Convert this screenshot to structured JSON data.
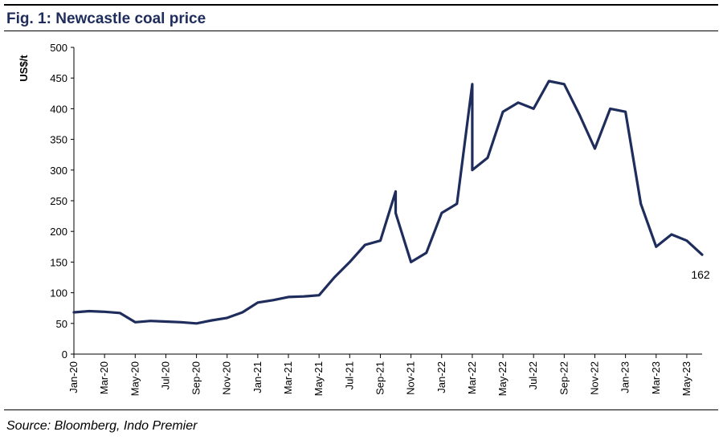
{
  "figure": {
    "title": "Fig. 1:  Newcastle coal price",
    "source": "Source: Bloomberg, Indo Premier"
  },
  "colors": {
    "line": "#1f2d5c",
    "title": "#1f2d5c"
  },
  "chart_data": {
    "type": "line",
    "title": "Fig. 1:  Newcastle coal price",
    "xlabel": "",
    "ylabel": "US$/t",
    "ylim": [
      0,
      500
    ],
    "yticks": [
      0,
      50,
      100,
      150,
      200,
      250,
      300,
      350,
      400,
      450,
      500
    ],
    "xlim": [
      "2020-01",
      "2023-06"
    ],
    "xticks": [
      "Jan-20",
      "Mar-20",
      "May-20",
      "Jul-20",
      "Sep-20",
      "Nov-20",
      "Jan-21",
      "Mar-21",
      "May-21",
      "Jul-21",
      "Sep-21",
      "Nov-21",
      "Jan-22",
      "Mar-22",
      "May-22",
      "Jul-22",
      "Sep-22",
      "Nov-22",
      "Jan-23",
      "Mar-23",
      "May-23"
    ],
    "grid": false,
    "legend": "none",
    "annotations": [
      {
        "text": "162",
        "x": "2023-06",
        "y": 162
      }
    ],
    "series": [
      {
        "x": [
          "2020-01",
          "2020-02",
          "2020-03",
          "2020-04",
          "2020-05",
          "2020-06",
          "2020-07",
          "2020-08",
          "2020-09",
          "2020-10",
          "2020-11",
          "2020-12",
          "2021-01",
          "2021-02",
          "2021-03",
          "2021-04",
          "2021-05",
          "2021-06",
          "2021-07",
          "2021-08",
          "2021-09",
          "2021-10",
          "2021-10",
          "2021-11",
          "2021-12",
          "2022-01",
          "2022-02",
          "2022-03",
          "2022-03",
          "2022-04",
          "2022-05",
          "2022-06",
          "2022-07",
          "2022-08",
          "2022-09",
          "2022-10",
          "2022-11",
          "2022-12",
          "2023-01",
          "2023-02",
          "2023-03",
          "2023-04",
          "2023-05",
          "2023-06"
        ],
        "y": [
          68,
          70,
          69,
          67,
          52,
          54,
          53,
          52,
          50,
          55,
          59,
          68,
          84,
          88,
          93,
          94,
          96,
          125,
          150,
          178,
          185,
          265,
          230,
          150,
          165,
          230,
          245,
          440,
          300,
          320,
          395,
          410,
          400,
          445,
          440,
          390,
          335,
          400,
          395,
          245,
          175,
          195,
          185,
          162
        ]
      }
    ]
  }
}
